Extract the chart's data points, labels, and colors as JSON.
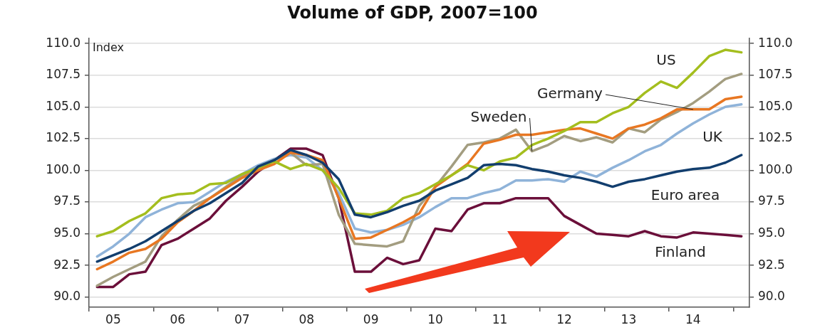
{
  "chart_data": {
    "type": "line",
    "title": "Volume of GDP, 2007=100",
    "ylabel": "Index",
    "categories": [
      null,
      "05",
      null,
      null,
      null,
      "06",
      null,
      null,
      null,
      "07",
      null,
      null,
      null,
      "08",
      null,
      null,
      null,
      "09",
      null,
      null,
      null,
      "10",
      null,
      null,
      null,
      "11",
      null,
      null,
      null,
      "12",
      null,
      null,
      null,
      "13",
      null,
      null,
      null,
      "14",
      null,
      null,
      null
    ],
    "ylim": [
      89.2,
      110.4
    ],
    "yticks": [
      {
        "value": 90,
        "label": "90.0"
      },
      {
        "value": 92.5,
        "label": "92.5"
      },
      {
        "value": 95,
        "label": "95.0"
      },
      {
        "value": 97.5,
        "label": "97.5"
      },
      {
        "value": 100,
        "label": "100.0"
      },
      {
        "value": 102.5,
        "label": "102.5"
      },
      {
        "value": 105,
        "label": "105.0"
      },
      {
        "value": 107.5,
        "label": "107.5"
      },
      {
        "value": 110,
        "label": "110.0"
      }
    ],
    "y2lim": [
      89.2,
      110.4
    ],
    "y2ticks": [
      {
        "value": 90,
        "label": "90.0"
      },
      {
        "value": 92.5,
        "label": "92.5"
      },
      {
        "value": 95,
        "label": "95.0"
      },
      {
        "value": 97.5,
        "label": "97.5"
      },
      {
        "value": 100,
        "label": "100.0"
      },
      {
        "value": 102.5,
        "label": "102.5"
      },
      {
        "value": 105,
        "label": "105.0"
      },
      {
        "value": 107.5,
        "label": "107.5"
      },
      {
        "value": 110,
        "label": "110.0"
      }
    ],
    "grid": "y",
    "legend": false,
    "marker": "none",
    "line_style": "solid",
    "series": [
      {
        "name": "US",
        "color": "#a4be1e",
        "values": [
          94.8,
          95.2,
          96.0,
          96.6,
          97.8,
          98.1,
          98.2,
          98.9,
          99.0,
          99.7,
          100.2,
          100.7,
          100.1,
          100.5,
          100.0,
          98.6,
          96.6,
          96.5,
          96.8,
          97.8,
          98.2,
          98.9,
          99.6,
          100.4,
          100.0,
          100.7,
          101.0,
          102.0,
          102.5,
          103.1,
          103.8,
          103.8,
          104.5,
          105.0,
          106.1,
          107.0,
          106.5,
          107.7,
          109.0,
          109.5,
          109.3
        ]
      },
      {
        "name": "Germany",
        "color": "#e87722",
        "values": [
          92.2,
          92.8,
          93.5,
          93.8,
          94.6,
          95.9,
          96.8,
          97.8,
          98.6,
          99.4,
          100.0,
          100.5,
          101.4,
          101.2,
          100.8,
          97.8,
          94.6,
          94.7,
          95.3,
          95.9,
          96.6,
          98.7,
          99.6,
          100.5,
          102.1,
          102.4,
          102.8,
          102.8,
          103.0,
          103.2,
          103.3,
          102.9,
          102.5,
          103.3,
          103.6,
          104.1,
          104.8,
          104.8,
          104.8,
          105.6,
          105.8
        ]
      },
      {
        "name": "Sweden",
        "color": "#a39d80",
        "values": [
          90.9,
          91.6,
          92.2,
          92.8,
          94.8,
          96.1,
          97.2,
          97.8,
          98.7,
          99.6,
          100.2,
          100.8,
          101.4,
          100.4,
          100.5,
          96.5,
          94.2,
          94.1,
          94.0,
          94.4,
          97.2,
          98.7,
          100.3,
          102.0,
          102.2,
          102.5,
          103.2,
          101.5,
          102.0,
          102.7,
          102.3,
          102.6,
          102.2,
          103.3,
          103.0,
          104.0,
          104.6,
          105.3,
          106.2,
          107.2,
          107.6
        ]
      },
      {
        "name": "UK",
        "color": "#8fb3d9",
        "values": [
          93.2,
          94.0,
          95.0,
          96.3,
          96.9,
          97.4,
          97.5,
          98.3,
          99.1,
          99.7,
          100.4,
          100.9,
          101.2,
          101.0,
          100.0,
          98.2,
          95.4,
          95.1,
          95.3,
          95.7,
          96.3,
          97.1,
          97.8,
          97.8,
          98.2,
          98.5,
          99.2,
          99.2,
          99.3,
          99.1,
          99.9,
          99.5,
          100.2,
          100.8,
          101.5,
          102.0,
          102.9,
          103.7,
          104.4,
          105.0,
          105.2
        ]
      },
      {
        "name": "Euro area",
        "color": "#123e6e",
        "values": [
          92.8,
          93.3,
          93.8,
          94.4,
          95.2,
          96.0,
          96.8,
          97.4,
          98.2,
          99.0,
          100.3,
          100.8,
          101.6,
          101.2,
          100.6,
          99.3,
          96.5,
          96.3,
          96.7,
          97.2,
          97.6,
          98.4,
          98.9,
          99.4,
          100.4,
          100.5,
          100.4,
          100.1,
          99.9,
          99.6,
          99.4,
          99.1,
          98.7,
          99.1,
          99.3,
          99.6,
          99.9,
          100.1,
          100.2,
          100.6,
          101.2
        ]
      },
      {
        "name": "Finland",
        "color": "#6b0f3a",
        "values": [
          90.8,
          90.8,
          91.8,
          92.0,
          94.1,
          94.6,
          95.4,
          96.2,
          97.6,
          98.7,
          99.9,
          100.8,
          101.7,
          101.7,
          101.2,
          97.8,
          92.0,
          92.0,
          93.1,
          92.6,
          92.9,
          95.4,
          95.2,
          96.9,
          97.4,
          97.4,
          97.8,
          97.8,
          97.8,
          96.4,
          95.7,
          95.0,
          94.9,
          94.8,
          95.2,
          94.8,
          94.7,
          95.1,
          95.0,
          94.9,
          94.8
        ]
      }
    ]
  }
}
